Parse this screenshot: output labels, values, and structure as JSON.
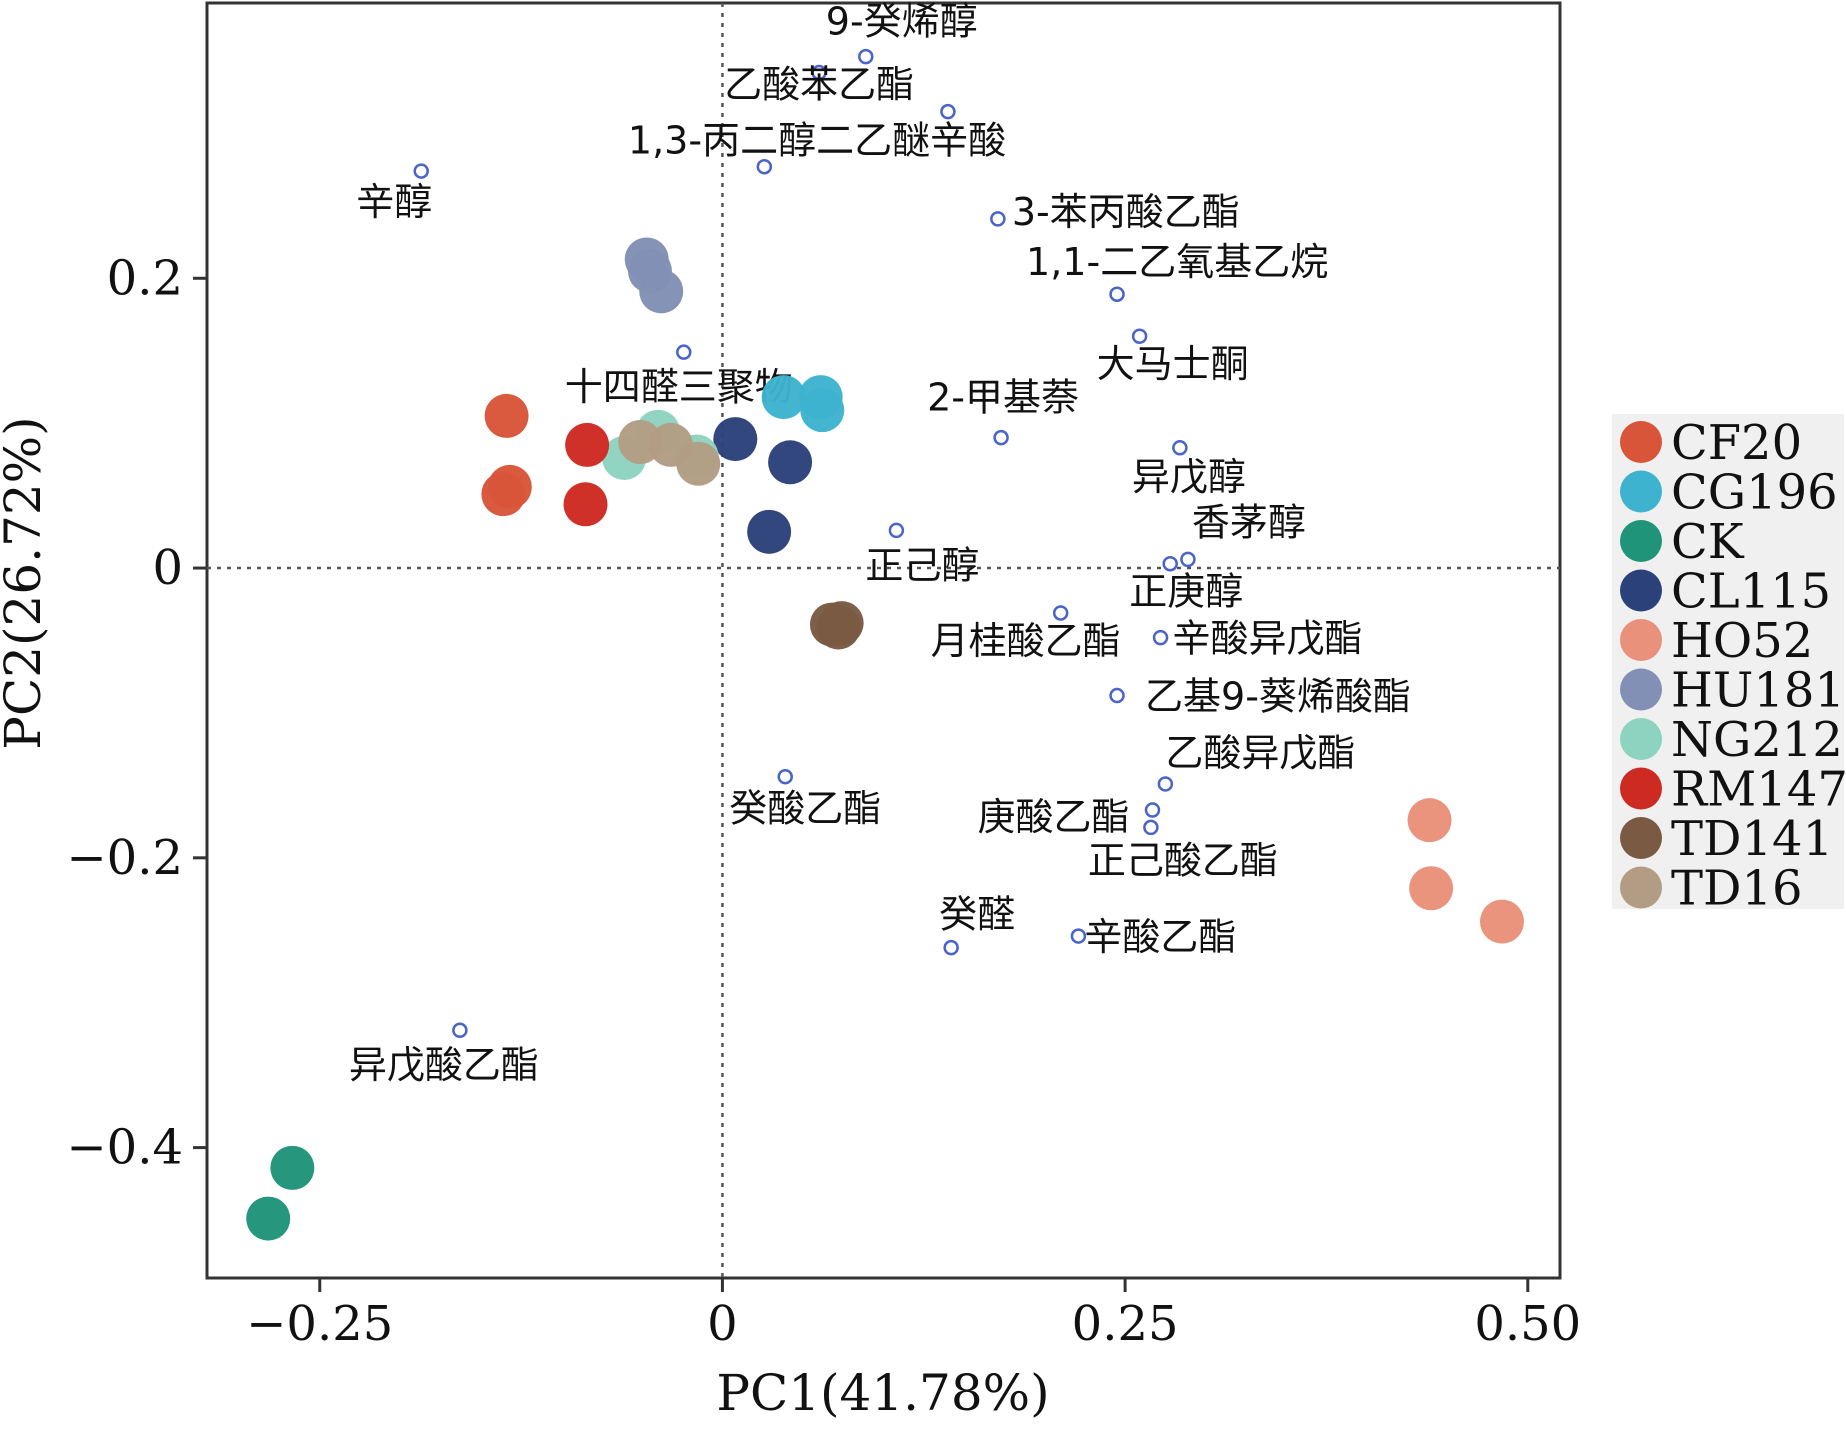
{
  "chart_data": {
    "type": "scatter",
    "title": "",
    "xlabel": "PC1(41.78%)",
    "ylabel": "PC2(26.72%)",
    "xlim": [
      -0.32,
      0.52
    ],
    "ylim": [
      -0.49,
      0.39
    ],
    "x_ticks": [
      -0.25,
      0,
      0.25,
      0.5
    ],
    "x_tick_labels": [
      "−0.25",
      "0",
      "0.25",
      "0.50"
    ],
    "y_ticks": [
      -0.4,
      -0.2,
      0,
      0.2
    ],
    "y_tick_labels": [
      "−0.4",
      "−0.2",
      "0",
      "0.2"
    ],
    "grid": false,
    "reference_lines": "dotted lines at x=0 and y=0",
    "legend_position": "right",
    "series": [
      {
        "name": "CF20",
        "color": "#d9553a",
        "points": [
          [
            -0.134,
            0.105
          ],
          [
            -0.132,
            0.056
          ],
          [
            -0.136,
            0.051
          ]
        ]
      },
      {
        "name": "CG196",
        "color": "#3db3cf",
        "points": [
          [
            0.038,
            0.118
          ],
          [
            0.061,
            0.118
          ],
          [
            0.062,
            0.109
          ]
        ]
      },
      {
        "name": "CK",
        "color": "#1f9478",
        "points": [
          [
            -0.267,
            -0.414
          ],
          [
            -0.282,
            -0.449
          ]
        ]
      },
      {
        "name": "CL115",
        "color": "#2b4179",
        "points": [
          [
            0.008,
            0.089
          ],
          [
            0.042,
            0.073
          ],
          [
            0.029,
            0.025
          ]
        ]
      },
      {
        "name": "HO52",
        "color": "#e9917a",
        "points": [
          [
            0.439,
            -0.174
          ],
          [
            0.44,
            -0.221
          ],
          [
            0.484,
            -0.244
          ]
        ]
      },
      {
        "name": "HU181",
        "color": "#8190b4",
        "points": [
          [
            -0.047,
            0.213
          ],
          [
            -0.045,
            0.205
          ],
          [
            -0.038,
            0.191
          ]
        ]
      },
      {
        "name": "NG212",
        "color": "#8dd3bf",
        "points": [
          [
            -0.04,
            0.094
          ],
          [
            -0.061,
            0.076
          ],
          [
            -0.016,
            0.077
          ]
        ]
      },
      {
        "name": "RM147",
        "color": "#cd2a22",
        "points": [
          [
            -0.084,
            0.085
          ],
          [
            -0.085,
            0.044
          ]
        ]
      },
      {
        "name": "TD141",
        "color": "#7a5a43",
        "points": [
          [
            0.068,
            -0.039
          ],
          [
            0.072,
            -0.041
          ],
          [
            0.074,
            -0.038
          ]
        ]
      },
      {
        "name": "TD16",
        "color": "#b29d84",
        "points": [
          [
            -0.051,
            0.087
          ],
          [
            -0.015,
            0.072
          ],
          [
            -0.032,
            0.085
          ]
        ]
      }
    ],
    "loadings": [
      {
        "label": "9-癸烯醇",
        "x": 0.089,
        "y": 0.353
      },
      {
        "label": "乙酸苯乙酯",
        "x": 0.06,
        "y": 0.342
      },
      {
        "label": "1,3-丙二醇二乙醚辛酸",
        "x": 0.14,
        "y": 0.315
      },
      {
        "label": "",
        "x": 0.026,
        "y": 0.277
      },
      {
        "label": "辛醇",
        "x": -0.187,
        "y": 0.274
      },
      {
        "label": "3-苯丙酸乙酯",
        "x": 0.171,
        "y": 0.241
      },
      {
        "label": "1,1-二乙氧基乙烷",
        "x": 0.245,
        "y": 0.189
      },
      {
        "label": "大马士酮",
        "x": 0.259,
        "y": 0.16
      },
      {
        "label": "十四醛三聚物",
        "x": -0.024,
        "y": 0.149
      },
      {
        "label": "2-甲基萘",
        "x": 0.173,
        "y": 0.09
      },
      {
        "label": "异戊醇",
        "x": 0.284,
        "y": 0.083
      },
      {
        "label": "正己醇",
        "x": 0.108,
        "y": 0.026
      },
      {
        "label": "香茅醇",
        "x": 0.289,
        "y": 0.006
      },
      {
        "label": "正庚醇",
        "x": 0.278,
        "y": 0.003
      },
      {
        "label": "月桂酸乙酯",
        "x": 0.21,
        "y": -0.031
      },
      {
        "label": "辛酸异戊酯",
        "x": 0.272,
        "y": -0.048
      },
      {
        "label": "乙基9-葵烯酸酯",
        "x": 0.245,
        "y": -0.088
      },
      {
        "label": "癸酸乙酯",
        "x": 0.039,
        "y": -0.144
      },
      {
        "label": "乙酸异戊酯",
        "x": 0.275,
        "y": -0.149
      },
      {
        "label": "庚酸乙酯",
        "x": 0.267,
        "y": -0.167
      },
      {
        "label": "正己酸乙酯",
        "x": 0.266,
        "y": -0.179
      },
      {
        "label": "辛酸乙酯",
        "x": 0.221,
        "y": -0.254
      },
      {
        "label": "癸醛",
        "x": 0.142,
        "y": -0.262
      },
      {
        "label": "异戊酸乙酯",
        "x": -0.163,
        "y": -0.319
      }
    ]
  }
}
